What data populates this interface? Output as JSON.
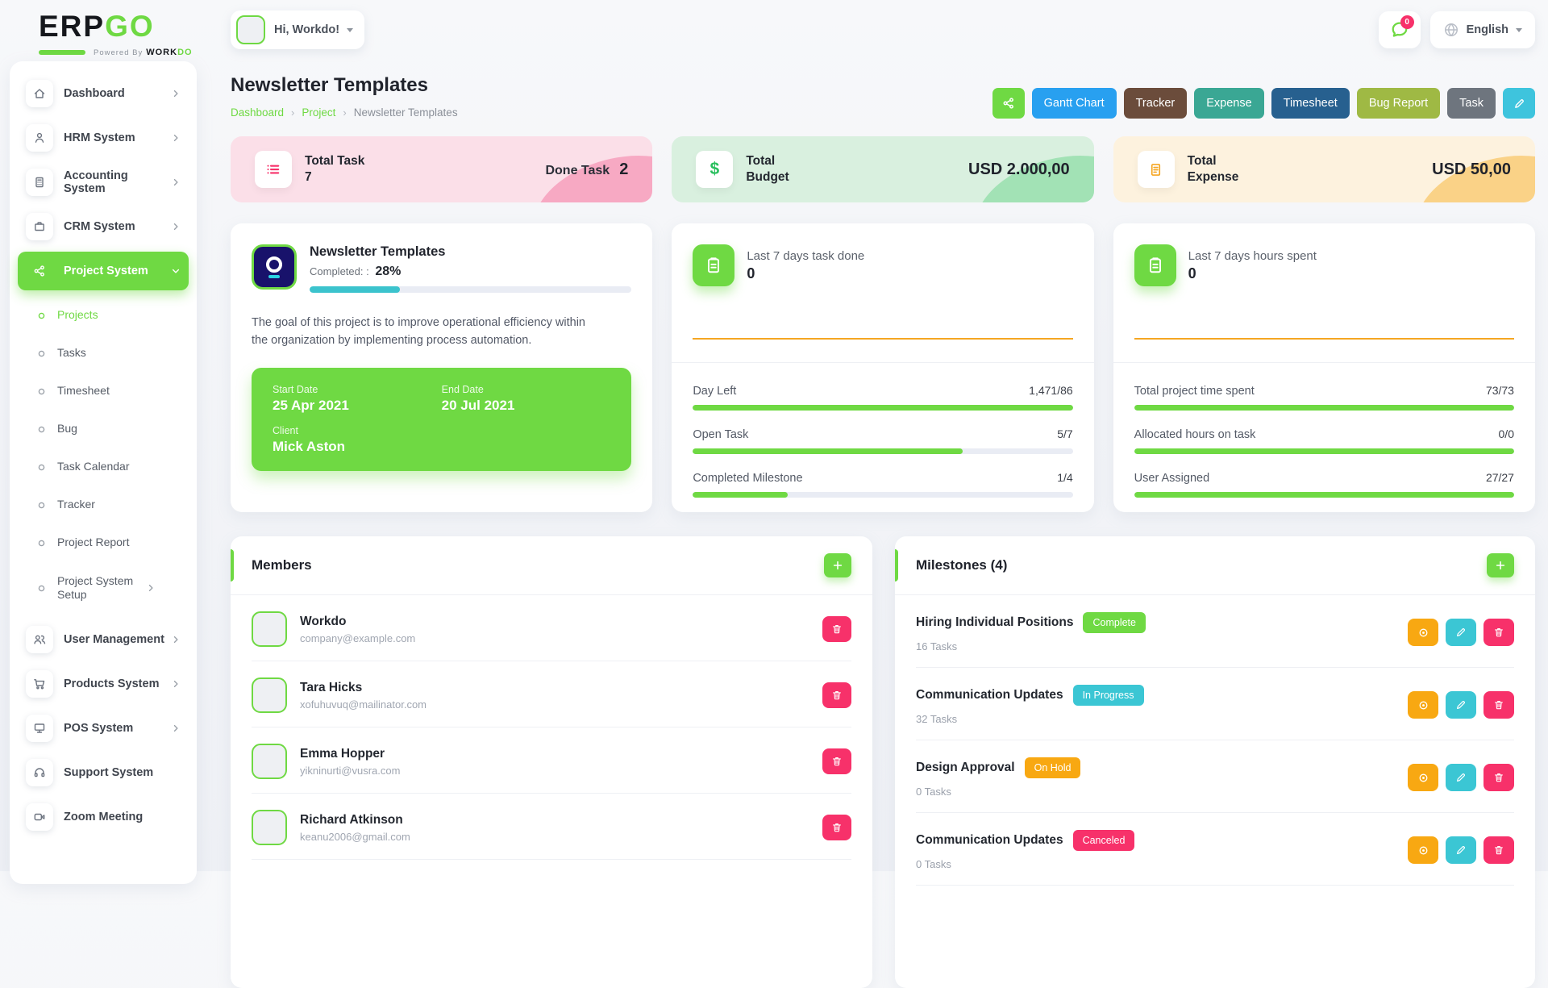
{
  "brand": {
    "name_dark": "ERP",
    "name_accent": "GO",
    "powered_by": "Powered By",
    "powered_brand_dark": "WORK",
    "powered_brand_accent": "DO"
  },
  "header": {
    "greeting": "Hi, Workdo!",
    "notification_count": "0",
    "language": "English"
  },
  "page": {
    "title": "Newsletter Templates",
    "breadcrumb": [
      "Dashboard",
      "Project",
      "Newsletter Templates"
    ]
  },
  "actions": [
    {
      "label": "Gantt Chart",
      "bg": "#28a0f0"
    },
    {
      "label": "Tracker",
      "bg": "#6b4c3b"
    },
    {
      "label": "Expense",
      "bg": "#3aa794"
    },
    {
      "label": "Timesheet",
      "bg": "#27608f"
    },
    {
      "label": "Bug Report",
      "bg": "#9fb944"
    },
    {
      "label": "Task",
      "bg": "#6e757e"
    }
  ],
  "colors": {
    "accent": "#6fd943",
    "share_button": "#6fd943",
    "edit_header_button": "#3ec4dd",
    "view_button": "#f8a812",
    "edit_button": "#3bc6d4",
    "delete_button": "#f7316a",
    "progress_teal": "#3bc3cd",
    "progress_green": "#6fd943",
    "sparkline": "#f5a623"
  },
  "stats": {
    "task": {
      "label": "Total Task",
      "value": "7",
      "right_label": "Done Task",
      "right_value": "2"
    },
    "budget": {
      "label_top": "Total",
      "label_bottom": "Budget",
      "value": "USD 2.000,00"
    },
    "expense": {
      "label_top": "Total",
      "label_bottom": "Expense",
      "value": "USD 50,00"
    }
  },
  "project": {
    "title": "Newsletter Templates",
    "completed_label": "Completed: :",
    "completed_value": "28%",
    "progress_pct": 28,
    "description": "The goal of this project is to improve operational efficiency within the organization by implementing process automation.",
    "start_date_label": "Start Date",
    "start_date": "25 Apr 2021",
    "end_date_label": "End Date",
    "end_date": "20 Jul 2021",
    "client_label": "Client",
    "client": "Mick Aston"
  },
  "task_summary": {
    "header_label": "Last 7 days task done",
    "header_value": "0",
    "rows": [
      {
        "label": "Day Left",
        "value": "1,471/86",
        "pct": 100
      },
      {
        "label": "Open Task",
        "value": "5/7",
        "pct": 71
      },
      {
        "label": "Completed Milestone",
        "value": "1/4",
        "pct": 25
      }
    ]
  },
  "time_summary": {
    "header_label": "Last 7 days hours spent",
    "header_value": "0",
    "rows": [
      {
        "label": "Total project time spent",
        "value": "73/73",
        "pct": 100
      },
      {
        "label": "Allocated hours on task",
        "value": "0/0",
        "pct": 100
      },
      {
        "label": "User Assigned",
        "value": "27/27",
        "pct": 100
      }
    ]
  },
  "members": {
    "title": "Members",
    "items": [
      {
        "name": "Workdo",
        "email": "company@example.com"
      },
      {
        "name": "Tara Hicks",
        "email": "xofuhuvuq@mailinator.com"
      },
      {
        "name": "Emma Hopper",
        "email": "yikninurti@vusra.com"
      },
      {
        "name": "Richard Atkinson",
        "email": "keanu2006@gmail.com"
      }
    ]
  },
  "milestones": {
    "title": "Milestones (4)",
    "items": [
      {
        "name": "Hiring Individual Positions",
        "status": "Complete",
        "status_color": "#6fd943",
        "tasks": "16 Tasks"
      },
      {
        "name": "Communication Updates",
        "status": "In Progress",
        "status_color": "#3bc6d4",
        "tasks": "32 Tasks"
      },
      {
        "name": "Design Approval",
        "status": "On Hold",
        "status_color": "#f8a812",
        "tasks": "0 Tasks"
      },
      {
        "name": "Communication Updates",
        "status": "Canceled",
        "status_color": "#f7316a",
        "tasks": "0 Tasks"
      }
    ]
  },
  "sidebar": {
    "items_top": [
      {
        "label": "Dashboard"
      },
      {
        "label": "HRM System"
      },
      {
        "label": "Accounting System"
      },
      {
        "label": "CRM System"
      }
    ],
    "project_system_label": "Project System",
    "submenu": [
      {
        "label": "Projects"
      },
      {
        "label": "Tasks"
      },
      {
        "label": "Timesheet"
      },
      {
        "label": "Bug"
      },
      {
        "label": "Task Calendar"
      },
      {
        "label": "Tracker"
      },
      {
        "label": "Project Report"
      },
      {
        "label": "Project System Setup"
      }
    ],
    "items_bottom": [
      {
        "label": "User Management"
      },
      {
        "label": "Products System"
      },
      {
        "label": "POS System"
      },
      {
        "label": "Support System"
      },
      {
        "label": "Zoom Meeting"
      }
    ]
  }
}
